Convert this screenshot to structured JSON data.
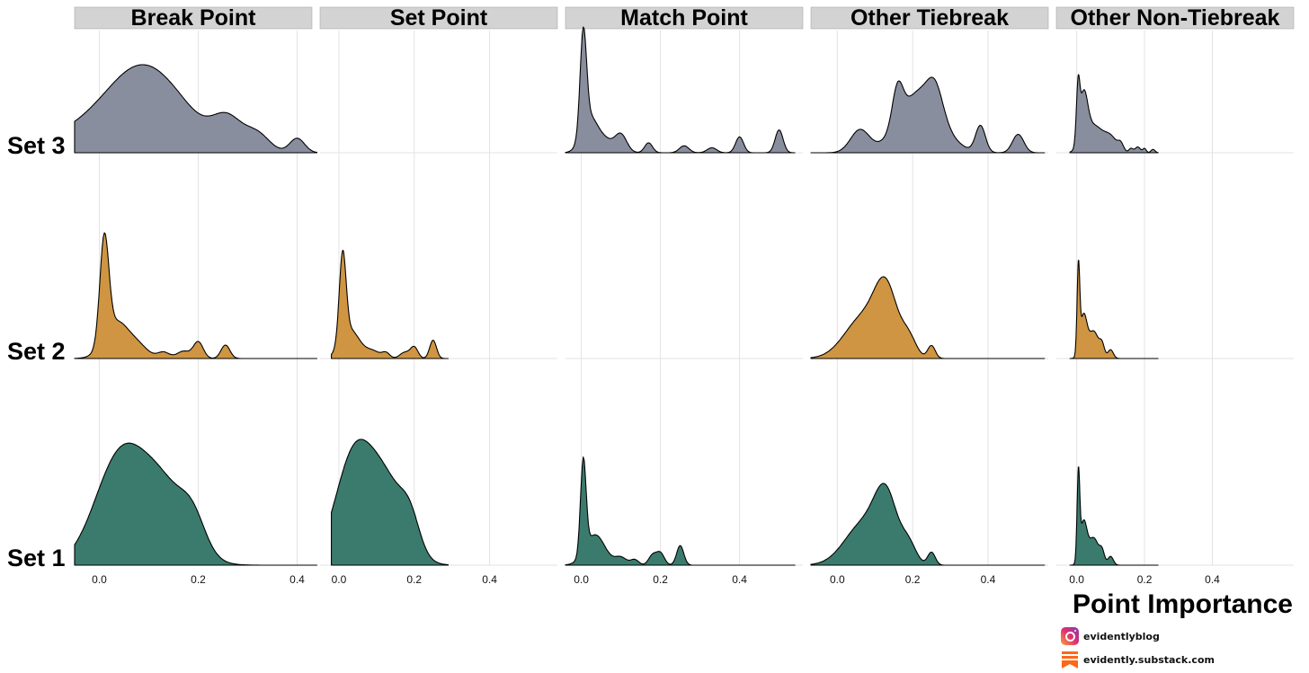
{
  "chart_data": {
    "type": "ridgeline-density",
    "xlabel": "Point Importance",
    "x_tick_labels": [
      "0.0",
      "0.2",
      "0.4"
    ],
    "facets": [
      {
        "name": "Break Point",
        "xlim": [
          -0.05,
          0.43
        ],
        "x_extent": [
          -0.05,
          0.44
        ],
        "ticks": [
          0.0,
          0.2,
          0.4
        ]
      },
      {
        "name": "Set Point",
        "xlim": [
          -0.05,
          0.58
        ],
        "x_extent": [
          -0.02,
          0.29
        ],
        "ticks": [
          0.0,
          0.2,
          0.4
        ]
      },
      {
        "name": "Match Point",
        "xlim": [
          -0.04,
          0.56
        ],
        "x_extent": [
          -0.04,
          0.54
        ],
        "ticks": [
          0.0,
          0.2,
          0.4
        ]
      },
      {
        "name": "Other Tiebreak",
        "xlim": [
          -0.07,
          0.56
        ],
        "x_extent": [
          -0.07,
          0.55
        ],
        "ticks": [
          0.0,
          0.2,
          0.4
        ]
      },
      {
        "name": "Other Non-Tiebreak",
        "xlim": [
          -0.06,
          0.64
        ],
        "x_extent": [
          -0.02,
          0.24
        ],
        "ticks": [
          0.0,
          0.2,
          0.4
        ]
      }
    ],
    "rows": [
      {
        "label": "Set 3",
        "color": "#898e9e"
      },
      {
        "label": "Set 2",
        "color": "#cf9542"
      },
      {
        "label": "Set 1",
        "color": "#3b7b6e"
      }
    ],
    "densities": [
      [
        [
          [
            0.03,
            0.11,
            0.7
          ],
          [
            0.06,
            0.06,
            0.5
          ],
          [
            0.1,
            0.06,
            0.58
          ],
          [
            0.16,
            0.06,
            0.45
          ],
          [
            0.26,
            0.03,
            0.6
          ],
          [
            0.32,
            0.025,
            0.35
          ],
          [
            0.4,
            0.015,
            0.3
          ]
        ],
        [
          [
            0.01,
            0.009,
            1.0
          ],
          [
            0.035,
            0.025,
            0.35
          ],
          [
            0.08,
            0.02,
            0.1
          ],
          [
            0.13,
            0.012,
            0.06
          ],
          [
            0.17,
            0.013,
            0.07
          ],
          [
            0.2,
            0.01,
            0.16
          ],
          [
            0.255,
            0.009,
            0.13
          ]
        ],
        [
          [
            0.04,
            0.05,
            0.97
          ],
          [
            0.13,
            0.05,
            0.68
          ],
          [
            0.19,
            0.025,
            0.25
          ]
        ]
      ],
      [
        [],
        [
          [
            0.01,
            0.009,
            0.86
          ],
          [
            0.03,
            0.025,
            0.28
          ],
          [
            0.09,
            0.02,
            0.07
          ],
          [
            0.125,
            0.01,
            0.05
          ],
          [
            0.175,
            0.013,
            0.06
          ],
          [
            0.2,
            0.01,
            0.11
          ],
          [
            0.25,
            0.009,
            0.18
          ]
        ],
        [
          [
            0.04,
            0.05,
            1.0
          ],
          [
            0.13,
            0.05,
            0.68
          ],
          [
            0.19,
            0.025,
            0.25
          ]
        ]
      ],
      [
        [
          [
            0.005,
            0.008,
            1.0
          ],
          [
            0.02,
            0.02,
            0.35
          ],
          [
            0.06,
            0.02,
            0.12
          ],
          [
            0.1,
            0.015,
            0.18
          ],
          [
            0.17,
            0.01,
            0.1
          ],
          [
            0.26,
            0.012,
            0.07
          ],
          [
            0.33,
            0.012,
            0.05
          ],
          [
            0.4,
            0.01,
            0.16
          ],
          [
            0.5,
            0.01,
            0.23
          ]
        ],
        [],
        [
          [
            0.005,
            0.007,
            0.86
          ],
          [
            0.035,
            0.025,
            0.28
          ],
          [
            0.1,
            0.015,
            0.07
          ],
          [
            0.135,
            0.01,
            0.05
          ],
          [
            0.18,
            0.01,
            0.09
          ],
          [
            0.2,
            0.01,
            0.11
          ],
          [
            0.25,
            0.009,
            0.18
          ]
        ]
      ],
      [
        [
          [
            0.06,
            0.025,
            0.22
          ],
          [
            0.16,
            0.014,
            0.36
          ],
          [
            0.22,
            0.055,
            0.6
          ],
          [
            0.26,
            0.02,
            0.25
          ],
          [
            0.38,
            0.013,
            0.26
          ],
          [
            0.48,
            0.015,
            0.18
          ]
        ],
        [
          [
            0.07,
            0.05,
            0.45
          ],
          [
            0.13,
            0.03,
            0.65
          ],
          [
            0.19,
            0.02,
            0.2
          ],
          [
            0.25,
            0.01,
            0.14
          ]
        ],
        [
          [
            0.07,
            0.05,
            0.45
          ],
          [
            0.13,
            0.03,
            0.65
          ],
          [
            0.19,
            0.02,
            0.2
          ],
          [
            0.25,
            0.01,
            0.14
          ]
        ]
      ],
      [
        [
          [
            0.004,
            0.005,
            0.62
          ],
          [
            0.02,
            0.012,
            0.6
          ],
          [
            0.05,
            0.025,
            0.32
          ],
          [
            0.1,
            0.02,
            0.18
          ],
          [
            0.13,
            0.008,
            0.08
          ],
          [
            0.16,
            0.006,
            0.05
          ],
          [
            0.18,
            0.008,
            0.07
          ],
          [
            0.2,
            0.005,
            0.05
          ],
          [
            0.225,
            0.006,
            0.04
          ]
        ],
        [
          [
            0.005,
            0.004,
            0.78
          ],
          [
            0.02,
            0.01,
            0.38
          ],
          [
            0.05,
            0.015,
            0.25
          ],
          [
            0.075,
            0.007,
            0.1
          ],
          [
            0.1,
            0.008,
            0.08
          ]
        ],
        [
          [
            0.005,
            0.004,
            0.78
          ],
          [
            0.02,
            0.01,
            0.38
          ],
          [
            0.05,
            0.015,
            0.25
          ],
          [
            0.075,
            0.007,
            0.1
          ],
          [
            0.1,
            0.008,
            0.08
          ]
        ]
      ]
    ]
  },
  "credits": {
    "instagram": "evidentlyblog",
    "substack": "evidently.substack.com"
  },
  "colors": {
    "strip_fill": "#d3d3d3",
    "strip_border": "#aaaaaa",
    "grid": "#e3e3e3",
    "outline": "#000000"
  }
}
